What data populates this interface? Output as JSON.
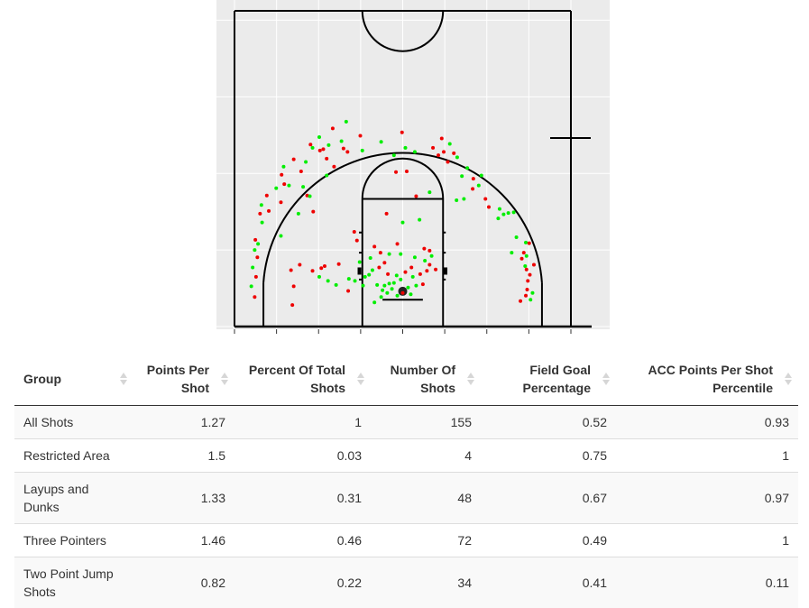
{
  "court": {
    "colors": {
      "background": "#ebebeb",
      "grid": "#ffffff",
      "lines": "#000000",
      "made": "#00ee00",
      "missed": "#ee0000"
    },
    "court_width_ft": 50,
    "court_length_ft": 47,
    "shots": [
      {
        "x": 3.0,
        "y": 4.4,
        "made": false
      },
      {
        "x": 2.5,
        "y": 6.0,
        "made": true
      },
      {
        "x": 3.2,
        "y": 7.4,
        "made": false
      },
      {
        "x": 2.7,
        "y": 8.8,
        "made": true
      },
      {
        "x": 3.4,
        "y": 10.3,
        "made": false
      },
      {
        "x": 3.0,
        "y": 11.4,
        "made": true
      },
      {
        "x": 3.5,
        "y": 12.3,
        "made": true
      },
      {
        "x": 3.1,
        "y": 12.9,
        "made": false
      },
      {
        "x": 4.1,
        "y": 15.5,
        "made": true
      },
      {
        "x": 3.8,
        "y": 16.8,
        "made": false
      },
      {
        "x": 5.1,
        "y": 17.2,
        "made": false
      },
      {
        "x": 4.0,
        "y": 18.1,
        "made": true
      },
      {
        "x": 4.8,
        "y": 19.5,
        "made": false
      },
      {
        "x": 6.9,
        "y": 18.5,
        "made": false
      },
      {
        "x": 6.2,
        "y": 20.6,
        "made": true
      },
      {
        "x": 7.4,
        "y": 21.2,
        "made": false
      },
      {
        "x": 7.0,
        "y": 22.6,
        "made": false
      },
      {
        "x": 8.1,
        "y": 21.0,
        "made": true
      },
      {
        "x": 7.3,
        "y": 23.8,
        "made": true
      },
      {
        "x": 8.8,
        "y": 24.9,
        "made": false
      },
      {
        "x": 9.9,
        "y": 23.1,
        "made": false
      },
      {
        "x": 10.6,
        "y": 24.5,
        "made": true
      },
      {
        "x": 12.7,
        "y": 26.2,
        "made": false
      },
      {
        "x": 14.0,
        "y": 27.0,
        "made": true
      },
      {
        "x": 12.6,
        "y": 28.2,
        "made": true
      },
      {
        "x": 15.9,
        "y": 27.6,
        "made": true
      },
      {
        "x": 11.6,
        "y": 26.6,
        "made": true
      },
      {
        "x": 13.7,
        "y": 25.0,
        "made": false
      },
      {
        "x": 11.3,
        "y": 27.1,
        "made": false
      },
      {
        "x": 14.6,
        "y": 29.5,
        "made": false
      },
      {
        "x": 16.2,
        "y": 26.5,
        "made": false
      },
      {
        "x": 16.6,
        "y": 30.5,
        "made": true
      },
      {
        "x": 16.8,
        "y": 26.0,
        "made": false
      },
      {
        "x": 13.2,
        "y": 26.4,
        "made": false
      },
      {
        "x": 10.2,
        "y": 20.8,
        "made": true
      },
      {
        "x": 10.8,
        "y": 19.5,
        "made": false
      },
      {
        "x": 11.7,
        "y": 17.1,
        "made": false
      },
      {
        "x": 9.5,
        "y": 16.8,
        "made": true
      },
      {
        "x": 13.7,
        "y": 22.5,
        "made": true
      },
      {
        "x": 14.8,
        "y": 23.8,
        "made": false
      },
      {
        "x": 18.7,
        "y": 28.4,
        "made": false
      },
      {
        "x": 19.0,
        "y": 26.2,
        "made": true
      },
      {
        "x": 21.8,
        "y": 27.5,
        "made": true
      },
      {
        "x": 23.7,
        "y": 25.5,
        "made": true
      },
      {
        "x": 24.9,
        "y": 28.9,
        "made": false
      },
      {
        "x": 25.4,
        "y": 26.6,
        "made": true
      },
      {
        "x": 26.8,
        "y": 26.0,
        "made": true
      },
      {
        "x": 25.6,
        "y": 23.1,
        "made": false
      },
      {
        "x": 24.0,
        "y": 23.0,
        "made": false
      },
      {
        "x": 30.8,
        "y": 28.0,
        "made": false
      },
      {
        "x": 32.0,
        "y": 27.2,
        "made": true
      },
      {
        "x": 31.1,
        "y": 26.0,
        "made": false
      },
      {
        "x": 32.6,
        "y": 25.8,
        "made": false
      },
      {
        "x": 31.7,
        "y": 24.5,
        "made": false
      },
      {
        "x": 33.1,
        "y": 25.2,
        "made": true
      },
      {
        "x": 29.5,
        "y": 26.6,
        "made": false
      },
      {
        "x": 30.3,
        "y": 25.5,
        "made": false
      },
      {
        "x": 34.6,
        "y": 23.6,
        "made": true
      },
      {
        "x": 35.5,
        "y": 22.0,
        "made": false
      },
      {
        "x": 33.8,
        "y": 22.4,
        "made": true
      },
      {
        "x": 36.7,
        "y": 22.5,
        "made": true
      },
      {
        "x": 36.3,
        "y": 21.0,
        "made": true
      },
      {
        "x": 37.3,
        "y": 19.0,
        "made": false
      },
      {
        "x": 29.0,
        "y": 20.0,
        "made": true
      },
      {
        "x": 39.4,
        "y": 17.5,
        "made": true
      },
      {
        "x": 40.0,
        "y": 16.7,
        "made": true
      },
      {
        "x": 40.7,
        "y": 16.9,
        "made": true
      },
      {
        "x": 41.5,
        "y": 17.0,
        "made": true
      },
      {
        "x": 39.2,
        "y": 16.1,
        "made": true
      },
      {
        "x": 43.3,
        "y": 12.5,
        "made": true
      },
      {
        "x": 43.0,
        "y": 11.0,
        "made": false
      },
      {
        "x": 43.8,
        "y": 12.4,
        "made": false
      },
      {
        "x": 43.4,
        "y": 10.5,
        "made": true
      },
      {
        "x": 43.2,
        "y": 9.0,
        "made": true
      },
      {
        "x": 44.5,
        "y": 9.2,
        "made": false
      },
      {
        "x": 43.4,
        "y": 8.5,
        "made": false
      },
      {
        "x": 43.9,
        "y": 7.7,
        "made": false
      },
      {
        "x": 43.6,
        "y": 6.8,
        "made": false
      },
      {
        "x": 43.5,
        "y": 5.5,
        "made": false
      },
      {
        "x": 44.3,
        "y": 5.0,
        "made": true
      },
      {
        "x": 44.0,
        "y": 4.0,
        "made": true
      },
      {
        "x": 43.3,
        "y": 4.6,
        "made": false
      },
      {
        "x": 41.2,
        "y": 11.0,
        "made": true
      },
      {
        "x": 41.9,
        "y": 13.3,
        "made": true
      },
      {
        "x": 8.4,
        "y": 8.4,
        "made": false
      },
      {
        "x": 9.7,
        "y": 9.2,
        "made": false
      },
      {
        "x": 8.8,
        "y": 6.0,
        "made": false
      },
      {
        "x": 8.6,
        "y": 3.2,
        "made": false
      },
      {
        "x": 11.6,
        "y": 8.3,
        "made": false
      },
      {
        "x": 12.6,
        "y": 7.4,
        "made": true
      },
      {
        "x": 13.9,
        "y": 6.8,
        "made": true
      },
      {
        "x": 15.1,
        "y": 6.2,
        "made": true
      },
      {
        "x": 17.0,
        "y": 7.1,
        "made": true
      },
      {
        "x": 15.5,
        "y": 9.3,
        "made": false
      },
      {
        "x": 17.9,
        "y": 6.8,
        "made": true
      },
      {
        "x": 16.9,
        "y": 5.3,
        "made": false
      },
      {
        "x": 19.1,
        "y": 6.1,
        "made": true
      },
      {
        "x": 20.8,
        "y": 11.9,
        "made": false
      },
      {
        "x": 21.7,
        "y": 11.0,
        "made": false
      },
      {
        "x": 23.0,
        "y": 10.8,
        "made": true
      },
      {
        "x": 22.3,
        "y": 9.5,
        "made": false
      },
      {
        "x": 21.5,
        "y": 8.8,
        "made": false
      },
      {
        "x": 22.8,
        "y": 7.8,
        "made": false
      },
      {
        "x": 23.7,
        "y": 6.5,
        "made": true
      },
      {
        "x": 24.1,
        "y": 7.6,
        "made": true
      },
      {
        "x": 24.7,
        "y": 7.0,
        "made": true
      },
      {
        "x": 23.0,
        "y": 6.4,
        "made": true
      },
      {
        "x": 22.3,
        "y": 6.1,
        "made": true
      },
      {
        "x": 21.2,
        "y": 6.2,
        "made": true
      },
      {
        "x": 22.0,
        "y": 5.4,
        "made": true
      },
      {
        "x": 22.7,
        "y": 5.0,
        "made": true
      },
      {
        "x": 23.4,
        "y": 5.6,
        "made": true
      },
      {
        "x": 21.8,
        "y": 4.4,
        "made": true
      },
      {
        "x": 24.2,
        "y": 4.6,
        "made": true
      },
      {
        "x": 25.0,
        "y": 5.0,
        "made": false
      },
      {
        "x": 25.8,
        "y": 5.8,
        "made": true
      },
      {
        "x": 26.2,
        "y": 4.8,
        "made": true
      },
      {
        "x": 26.5,
        "y": 7.4,
        "made": true
      },
      {
        "x": 27.0,
        "y": 6.1,
        "made": true
      },
      {
        "x": 27.6,
        "y": 7.8,
        "made": false
      },
      {
        "x": 25.4,
        "y": 8.1,
        "made": false
      },
      {
        "x": 26.3,
        "y": 8.8,
        "made": false
      },
      {
        "x": 24.7,
        "y": 10.8,
        "made": true
      },
      {
        "x": 26.8,
        "y": 10.3,
        "made": true
      },
      {
        "x": 25.0,
        "y": 15.5,
        "made": true
      },
      {
        "x": 27.5,
        "y": 15.9,
        "made": true
      },
      {
        "x": 28.2,
        "y": 11.6,
        "made": false
      },
      {
        "x": 29.0,
        "y": 11.3,
        "made": false
      },
      {
        "x": 29.3,
        "y": 10.5,
        "made": true
      },
      {
        "x": 28.3,
        "y": 9.8,
        "made": true
      },
      {
        "x": 29.0,
        "y": 9.2,
        "made": false
      },
      {
        "x": 29.9,
        "y": 8.5,
        "made": false
      },
      {
        "x": 28.6,
        "y": 8.3,
        "made": false
      },
      {
        "x": 22.6,
        "y": 16.8,
        "made": false
      },
      {
        "x": 24.2,
        "y": 12.3,
        "made": false
      },
      {
        "x": 20.5,
        "y": 8.4,
        "made": true
      },
      {
        "x": 28.0,
        "y": 6.3,
        "made": false
      },
      {
        "x": 20.0,
        "y": 7.7,
        "made": true
      },
      {
        "x": 19.4,
        "y": 7.4,
        "made": true
      },
      {
        "x": 18.6,
        "y": 9.6,
        "made": true
      },
      {
        "x": 18.2,
        "y": 12.8,
        "made": false
      },
      {
        "x": 17.8,
        "y": 14.1,
        "made": false
      },
      {
        "x": 13.4,
        "y": 9.0,
        "made": false
      },
      {
        "x": 12.9,
        "y": 8.7,
        "made": false
      },
      {
        "x": 20.8,
        "y": 3.6,
        "made": true
      },
      {
        "x": 6.9,
        "y": 13.5,
        "made": true
      },
      {
        "x": 11.2,
        "y": 19.4,
        "made": true
      },
      {
        "x": 27.0,
        "y": 19.4,
        "made": false
      },
      {
        "x": 34.1,
        "y": 19.0,
        "made": true
      },
      {
        "x": 33.0,
        "y": 18.8,
        "made": true
      },
      {
        "x": 35.4,
        "y": 20.5,
        "made": false
      },
      {
        "x": 37.8,
        "y": 17.8,
        "made": false
      },
      {
        "x": 20.2,
        "y": 10.2,
        "made": true
      },
      {
        "x": 42.7,
        "y": 10.1,
        "made": false
      },
      {
        "x": 42.5,
        "y": 3.8,
        "made": false
      }
    ]
  },
  "table": {
    "headers": [
      "Group",
      "Points Per Shot",
      "Percent Of Total Shots",
      "Number Of Shots",
      "Field Goal Percentage",
      "ACC Points Per Shot Percentile"
    ],
    "rows": [
      {
        "group": "All Shots",
        "pps": "1.27",
        "pct": "1",
        "num": "155",
        "fg": "0.52",
        "acc": "0.93"
      },
      {
        "group": "Restricted Area",
        "pps": "1.5",
        "pct": "0.03",
        "num": "4",
        "fg": "0.75",
        "acc": "1"
      },
      {
        "group": "Layups and Dunks",
        "pps": "1.33",
        "pct": "0.31",
        "num": "48",
        "fg": "0.67",
        "acc": "0.97"
      },
      {
        "group": "Three Pointers",
        "pps": "1.46",
        "pct": "0.46",
        "num": "72",
        "fg": "0.49",
        "acc": "1"
      },
      {
        "group": "Two Point Jump Shots",
        "pps": "0.82",
        "pct": "0.22",
        "num": "34",
        "fg": "0.41",
        "acc": "0.11"
      }
    ]
  }
}
